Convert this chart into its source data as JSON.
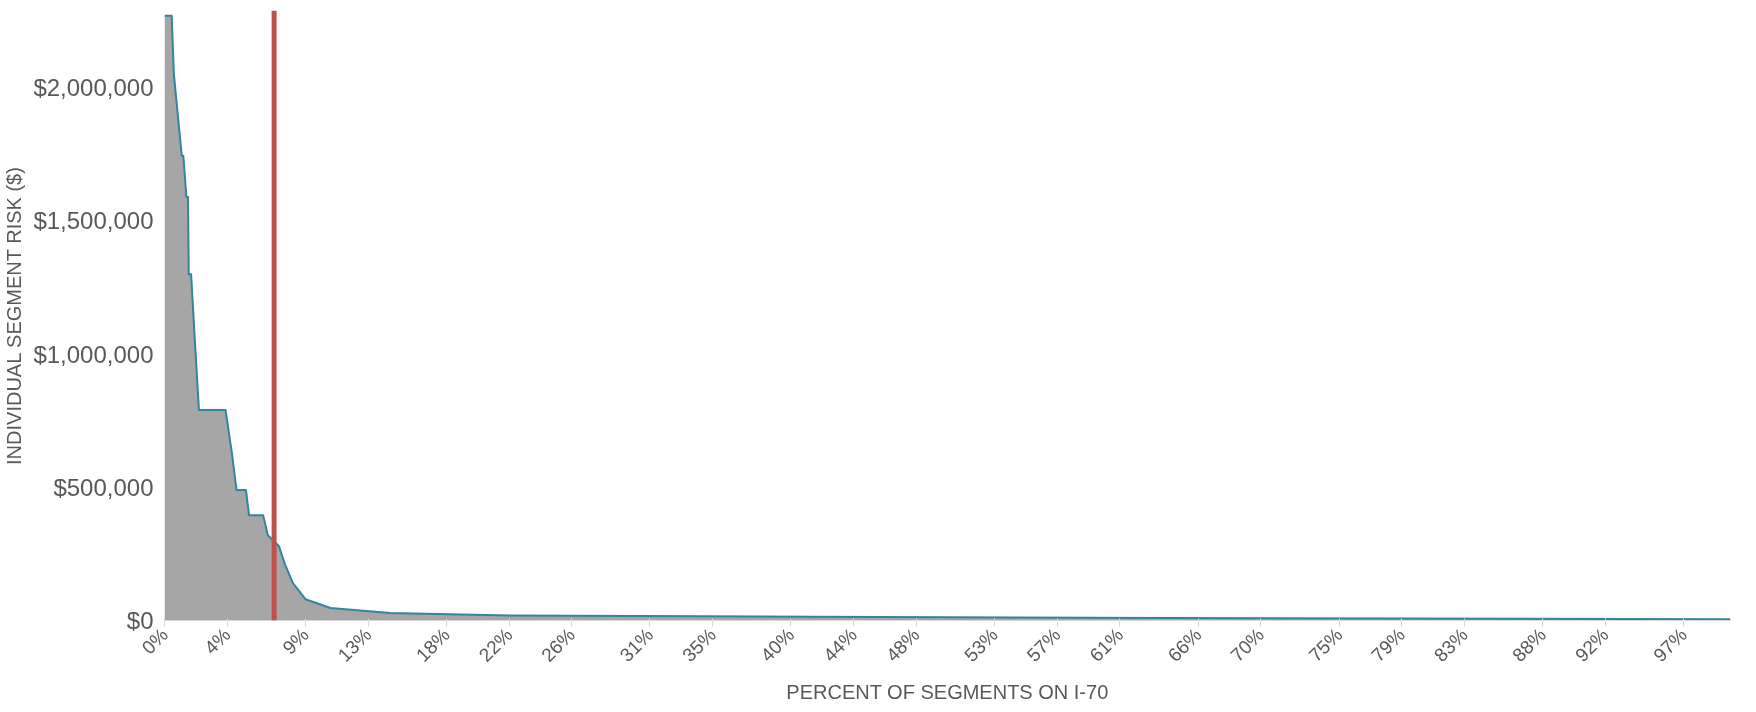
{
  "chart_data": {
    "type": "area",
    "xlabel": "PERCENT OF SEGMENTS ON I-70",
    "ylabel": "INDIVIDUAL SEGMENT RISK ($)",
    "x": [
      0,
      0.46,
      0.6,
      1.1,
      1.2,
      1.4,
      1.5,
      1.55,
      1.7,
      1.9,
      2.2,
      3.9,
      4.3,
      4.6,
      5.2,
      5.4,
      6.3,
      6.6,
      7.3,
      7.7,
      8.2,
      9.0,
      10.6,
      14.4,
      22.1,
      41.3,
      64.3,
      100
    ],
    "series": [
      {
        "color": "#a6a6a6",
        "values": [
          2270000,
          2270000,
          2050000,
          1745000,
          1745000,
          1590000,
          1590000,
          1300000,
          1300000,
          1090000,
          790000,
          790000,
          630000,
          490000,
          490000,
          395000,
          395000,
          320000,
          280000,
          210000,
          140000,
          80000,
          47000,
          28000,
          19000,
          14000,
          9000,
          5000
        ]
      }
    ],
    "xlim": [
      0,
      100
    ],
    "xticks": [
      {
        "value": 0,
        "label": "0%"
      },
      {
        "value": 4,
        "label": "4%"
      },
      {
        "value": 9,
        "label": "9%"
      },
      {
        "value": 13,
        "label": "13%"
      },
      {
        "value": 18,
        "label": "18%"
      },
      {
        "value": 22,
        "label": "22%"
      },
      {
        "value": 26,
        "label": "26%"
      },
      {
        "value": 31,
        "label": "31%"
      },
      {
        "value": 35,
        "label": "35%"
      },
      {
        "value": 40,
        "label": "40%"
      },
      {
        "value": 44,
        "label": "44%"
      },
      {
        "value": 48,
        "label": "48%"
      },
      {
        "value": 53,
        "label": "53%"
      },
      {
        "value": 57,
        "label": "57%"
      },
      {
        "value": 61,
        "label": "61%"
      },
      {
        "value": 66,
        "label": "66%"
      },
      {
        "value": 70,
        "label": "70%"
      },
      {
        "value": 75,
        "label": "75%"
      },
      {
        "value": 79,
        "label": "79%"
      },
      {
        "value": 83,
        "label": "83%"
      },
      {
        "value": 88,
        "label": "88%"
      },
      {
        "value": 92,
        "label": "92%"
      },
      {
        "value": 97,
        "label": "97%"
      }
    ],
    "ylim": [
      0,
      2290000
    ],
    "yticks": [
      {
        "value": 0,
        "label": "$0"
      },
      {
        "value": 500000,
        "label": "$500,000"
      },
      {
        "value": 1000000,
        "label": "$1,000,000"
      },
      {
        "value": 1500000,
        "label": "$1,500,000"
      },
      {
        "value": 2000000,
        "label": "$2,000,000"
      }
    ],
    "ref_lines": [
      {
        "axis": "x",
        "value": 7,
        "color": "#c0504d"
      }
    ],
    "grid": false
  }
}
